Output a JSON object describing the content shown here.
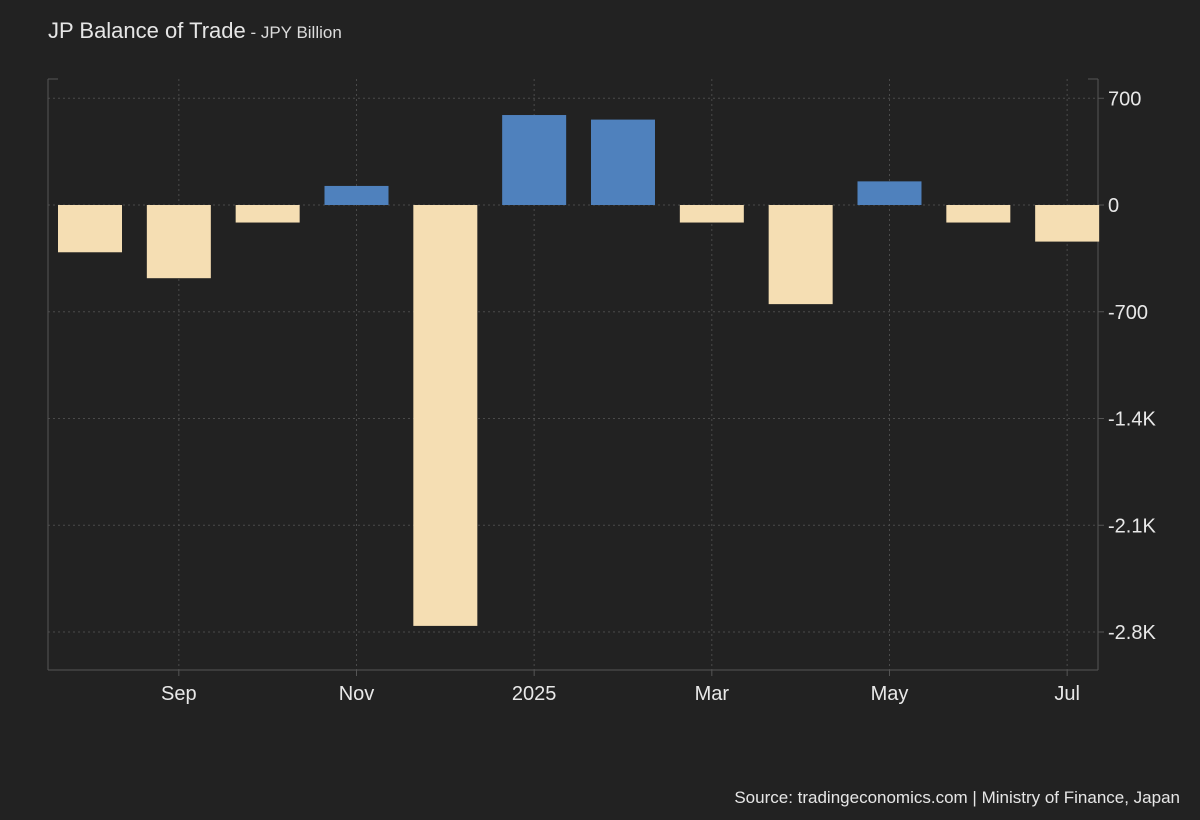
{
  "chart_data": {
    "type": "bar",
    "title": "JP Balance of Trade",
    "subtitle": "JPY Billion",
    "title_separator": " - ",
    "categories": [
      "2024-08",
      "2024-09",
      "2024-10",
      "2024-11",
      "2024-12",
      "2025-01",
      "2025-02",
      "2025-03",
      "2025-04",
      "2025-05",
      "2025-06",
      "2025-07",
      "2025-08"
    ],
    "values": [
      -310,
      -480,
      -115,
      125,
      -2760,
      590,
      560,
      -115,
      -650,
      155,
      -115,
      -240,
      null
    ],
    "x_tick_labels": [
      {
        "label": "Sep",
        "category": "2024-09"
      },
      {
        "label": "Nov",
        "category": "2024-11"
      },
      {
        "label": "2025",
        "category": "2025-01"
      },
      {
        "label": "Mar",
        "category": "2025-03"
      },
      {
        "label": "May",
        "category": "2025-05"
      },
      {
        "label": "Jul",
        "category": "2025-07"
      }
    ],
    "y_ticks": [
      700,
      0,
      -700,
      -1400,
      -2100,
      -2800
    ],
    "y_tick_labels": [
      "700",
      "0",
      "-700",
      "-1.4K",
      "-2.1K",
      "-2.8K"
    ],
    "ylim": [
      -3000,
      800
    ],
    "grid": true,
    "y_axis_side": "right",
    "colors": {
      "positive": "#4f81bd",
      "negative": "#f5deb3",
      "grid": "#4a4a4a",
      "axis": "#555555"
    }
  },
  "source": "Source: tradingeconomics.com | Ministry of Finance, Japan"
}
